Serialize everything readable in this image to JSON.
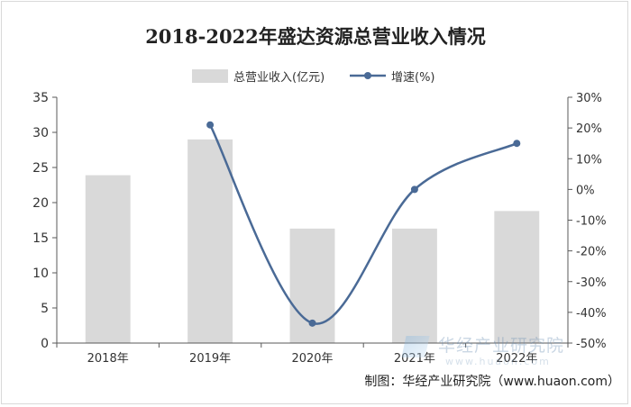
{
  "chart_data": {
    "type": "bar+line",
    "title": "2018-2022年盛达资源总营业收入情况",
    "categories": [
      "2018年",
      "2019年",
      "2020年",
      "2021年",
      "2022年"
    ],
    "series": [
      {
        "name": "总营业收入(亿元)",
        "type": "bar",
        "axis": "left",
        "values": [
          23.9,
          29.0,
          16.3,
          16.3,
          18.8
        ]
      },
      {
        "name": "增速(%)",
        "type": "line",
        "axis": "right",
        "values": [
          null,
          21.0,
          -43.5,
          0.0,
          15.0
        ]
      }
    ],
    "y_left": {
      "min": 0,
      "max": 35,
      "ticks": [
        "0",
        "5",
        "10",
        "15",
        "20",
        "25",
        "30",
        "35"
      ]
    },
    "y_right": {
      "min": -50,
      "max": 30,
      "ticks": [
        "-50%",
        "-40%",
        "-30%",
        "-20%",
        "-10%",
        "0%",
        "10%",
        "20%",
        "30%"
      ]
    },
    "legend_position": "top-center",
    "grid": false,
    "colors": {
      "bar": "#d9d9d9",
      "line": "#4a6a96",
      "axis": "#595959"
    }
  },
  "source_credit": "制图：华经产业研究院（www.huaon.com）",
  "watermark": {
    "name": "华经产业研究院",
    "url": "www.huaon.com"
  }
}
